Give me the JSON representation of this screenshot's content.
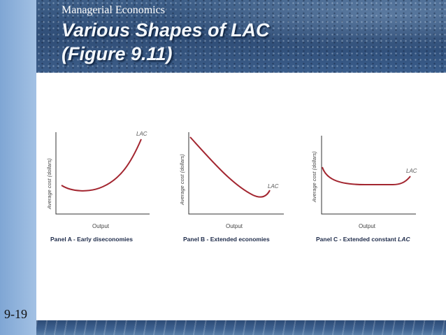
{
  "header": {
    "course": "Managerial Economics",
    "title_line_1": "Various Shapes of LAC",
    "title_line_2": "(Figure 9.11)"
  },
  "slide_number": "9-19",
  "panels": [
    {
      "id": "A",
      "y_label": "Average cost (dollars)",
      "x_label": "Output",
      "curve_label": "LAC",
      "caption": "Panel A - Early diseconomies",
      "caption_italic": ""
    },
    {
      "id": "B",
      "y_label": "Average cost (dollars)",
      "x_label": "Output",
      "curve_label": "LAC",
      "caption": "Panel B - Extended economies",
      "caption_italic": ""
    },
    {
      "id": "C",
      "y_label": "Average cost (dollars)",
      "x_label": "Output",
      "curve_label": "LAC",
      "caption": "Panel C - Extended constant ",
      "caption_italic": "LAC"
    }
  ],
  "colors": {
    "curve": "#a32630",
    "title": "#f3f7fc",
    "caption": "#1e2b4a"
  }
}
